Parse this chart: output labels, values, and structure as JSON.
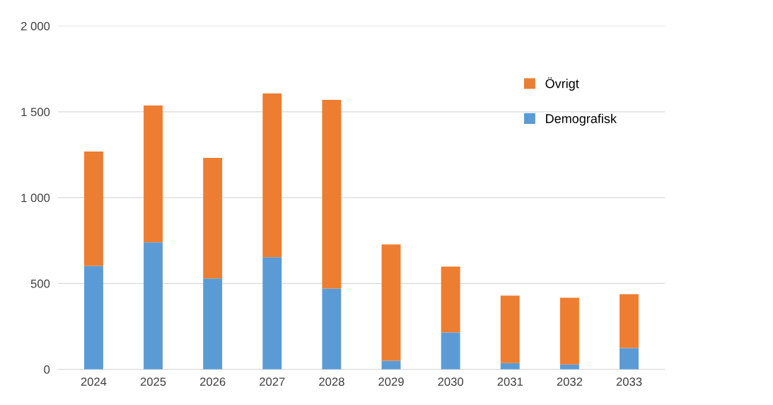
{
  "chart_data": {
    "type": "bar",
    "stacked": true,
    "categories": [
      "2024",
      "2025",
      "2026",
      "2027",
      "2028",
      "2029",
      "2030",
      "2031",
      "2032",
      "2033"
    ],
    "series": [
      {
        "name": "Demografisk",
        "color": "#5b9bd5",
        "values": [
          603,
          740,
          529,
          653,
          471,
          50,
          215,
          37,
          29,
          124
        ]
      },
      {
        "name": "Övrigt",
        "color": "#ed7d31",
        "values": [
          666,
          797,
          702,
          954,
          1099,
          677,
          384,
          393,
          388,
          314
        ]
      }
    ],
    "ylim": [
      0,
      2000
    ],
    "yticks": [
      {
        "value": 0,
        "label": "0"
      },
      {
        "value": 500,
        "label": "500"
      },
      {
        "value": 1000,
        "label": "1 000"
      },
      {
        "value": 1500,
        "label": "1 500"
      },
      {
        "value": 2000,
        "label": "2 000"
      }
    ],
    "grid": "y",
    "legend": "right"
  }
}
